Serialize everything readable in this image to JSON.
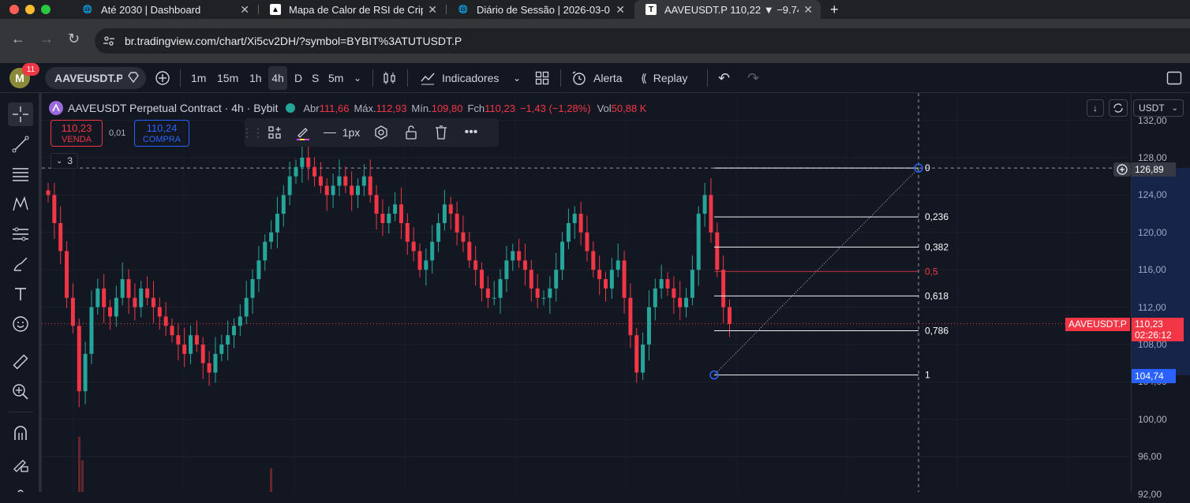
{
  "browser": {
    "tabs": [
      {
        "title": "Até 2030 | Dashboard",
        "icon": "globe-icon"
      },
      {
        "title": "Mapa de Calor de RSI de Crip",
        "icon": "doc-icon"
      },
      {
        "title": "Diário de Sessão | 2026-03-0",
        "icon": "globe-icon"
      },
      {
        "title": "AAVEUSDT.P 110,22 ▼ −9.74",
        "icon": "tradingview-icon"
      }
    ],
    "new_tab": "+",
    "url": "br.tradingview.com/chart/Xi5cv2DH/?symbol=BYBIT%3ATUTUSDT.P"
  },
  "toolbar": {
    "avatar_letter": "M",
    "notif_count": "11",
    "symbol": "AAVEUSDT.P",
    "intervals": [
      "1m",
      "15m",
      "1h",
      "4h",
      "D",
      "S",
      "5m"
    ],
    "active_interval": "4h",
    "indicators": "Indicadores",
    "alert": "Alerta",
    "replay": "Replay"
  },
  "legend": {
    "title": "AAVEUSDT Perpetual Contract · 4h · Bybit",
    "open_label": "Abr",
    "open": "111,66",
    "high_label": "Máx.",
    "high": "112,93",
    "low_label": "Mín.",
    "low": "109,80",
    "close_label": "Fch",
    "close": "110,23",
    "change": "−1,43 (−1,28%)",
    "vol_label": "Vol",
    "vol": "50,88 K",
    "sell_price": "110,23",
    "sell_label": "VENDA",
    "spread": "0,01",
    "buy_price": "110,24",
    "buy_label": "COMPRA",
    "collapsed_count": "3"
  },
  "drawing_toolbar": {
    "width_label": "1px"
  },
  "currency": "USDT",
  "price_axis": {
    "ticks": [
      "132,00",
      "128,00",
      "124,00",
      "120,00",
      "116,00",
      "112,00",
      "108,00",
      "104,00",
      "100,00",
      "96,00",
      "92,00"
    ],
    "crosshair_price": "126,89",
    "symbol_tag": "AAVEUSDT.P",
    "last_price": "110,23",
    "countdown": "02:26:12",
    "fib_low_price": "104,74"
  },
  "fibonacci": {
    "levels": [
      "0",
      "0,236",
      "0,382",
      "0,5",
      "0,618",
      "0,786",
      "1"
    ],
    "high": 126.89,
    "low": 104.74
  },
  "colors": {
    "up": "#26a69a",
    "down": "#f23645",
    "accent": "#2962ff",
    "bg": "#131722"
  }
}
